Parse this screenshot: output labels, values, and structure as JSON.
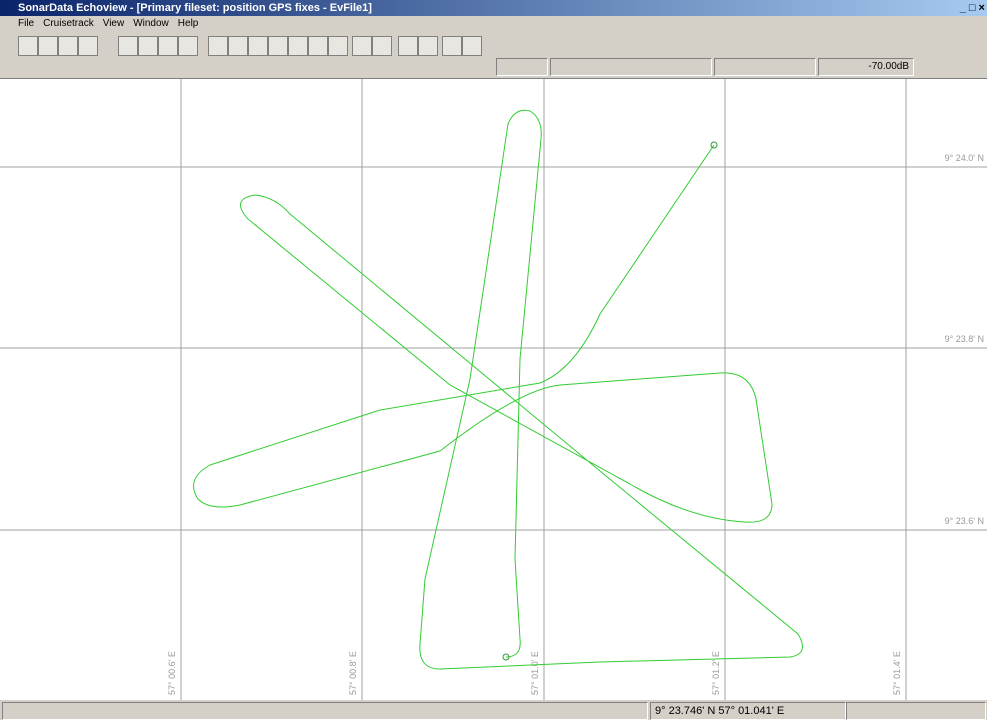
{
  "window": {
    "title": "SonarData Echoview - [Primary fileset: position GPS fixes  - EvFile1]"
  },
  "menu": [
    "File",
    "Cruisetrack",
    "View",
    "Window",
    "Help"
  ],
  "toolbar": {
    "threshold": "-70.00dB"
  },
  "map": {
    "latitude_labels": [
      "9° 24.0' N",
      "9° 23.8' N",
      "9° 23.6' N"
    ],
    "longitude_labels": [
      "57° 00.6' E",
      "57° 00.8' E",
      "57° 01.0' E",
      "57° 01.2' E",
      "57° 01.4' E"
    ]
  },
  "status": {
    "position": "9° 23.746' N 57° 01.041' E"
  }
}
